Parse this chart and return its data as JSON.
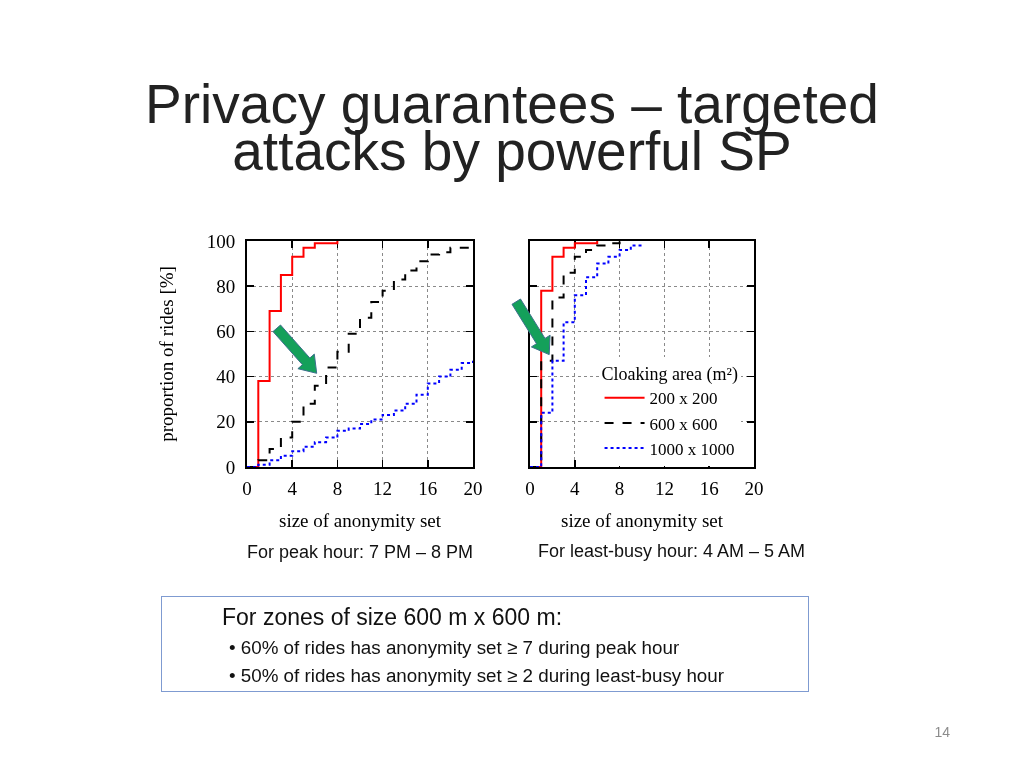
{
  "chart_data": [
    {
      "type": "step",
      "title": "Privacy guarantees – targeted attacks by powerful SP",
      "xlabel": "size of anonymity set",
      "ylabel": "proportion of rides [%]",
      "annotations": [
        "For peak hour: 7 PM – 8 PM"
      ],
      "series": [
        {
          "color": "#ff0000",
          "line_style": "solid",
          "x": [
            0,
            1,
            2,
            3,
            4,
            5,
            6,
            7,
            8
          ],
          "values": [
            0,
            38,
            69,
            85,
            93,
            97,
            99,
            99,
            100
          ]
        },
        {
          "color": "#000000",
          "line_style": "dashed",
          "x": [
            0,
            1,
            2,
            3,
            4,
            5,
            6,
            7,
            8,
            9,
            10,
            11,
            12,
            13,
            14,
            15,
            16,
            17,
            18,
            19,
            20
          ],
          "values": [
            0,
            3,
            8,
            13,
            20,
            28,
            36,
            44,
            51,
            59,
            66,
            73,
            78,
            83,
            87,
            91,
            94,
            95,
            97,
            97,
            97
          ]
        },
        {
          "color": "#0000ff",
          "line_style": "dotted",
          "x": [
            0,
            1,
            2,
            3,
            4,
            5,
            6,
            7,
            8,
            9,
            10,
            11,
            12,
            13,
            14,
            15,
            16,
            17,
            18,
            19,
            20
          ],
          "values": [
            0,
            1,
            3,
            5,
            7,
            9,
            11,
            13,
            16,
            17,
            19,
            21,
            23,
            25,
            28,
            32,
            37,
            40,
            43,
            46,
            47
          ]
        }
      ],
      "xlim": [
        0,
        20
      ],
      "xticks": [
        0,
        4,
        8,
        12,
        16,
        20
      ],
      "ylim": [
        0,
        100
      ],
      "yticks": [
        0,
        20,
        40,
        60,
        80,
        100
      ],
      "grid": true
    },
    {
      "type": "step",
      "xlabel": "size of anonymity set",
      "annotations": [
        "For least-busy hour: 4 AM – 5 AM"
      ],
      "legend_title": "Cloaking area (m²)",
      "series": [
        {
          "name": "200 x 200",
          "color": "#ff0000",
          "line_style": "solid",
          "x": [
            0,
            1,
            2,
            3,
            4,
            5,
            6
          ],
          "values": [
            0,
            78,
            93,
            97,
            99,
            99,
            100
          ]
        },
        {
          "name": "600 x 600",
          "color": "#000000",
          "line_style": "dashed",
          "x": [
            0,
            1,
            2,
            3,
            4,
            5,
            6,
            7,
            8
          ],
          "values": [
            0,
            47,
            75,
            86,
            93,
            96,
            98,
            99,
            100
          ]
        },
        {
          "name": "1000 x 1000",
          "color": "#0000ff",
          "line_style": "dotted",
          "x": [
            0,
            1,
            2,
            3,
            4,
            5,
            6,
            7,
            8,
            9,
            10
          ],
          "values": [
            0,
            24,
            47,
            64,
            76,
            84,
            90,
            93,
            96,
            98,
            99
          ]
        }
      ],
      "xlim": [
        0,
        20
      ],
      "xticks": [
        0,
        4,
        8,
        12,
        16,
        20
      ],
      "ylim": [
        0,
        100
      ],
      "yticks": [
        0,
        20,
        40,
        60,
        80,
        100
      ],
      "tick_labels": "x",
      "grid": true,
      "legend": "bottom right"
    },
    {
      "type": "other",
      "title": "For zones of size 600 m x 600 m:",
      "annotations": [
        "• 60% of rides has anonymity set ≥ 7 during peak hour",
        "• 50% of rides has anonymity set ≥ 2 during least-busy hour"
      ]
    },
    {
      "type": "other",
      "annotations": [
        "14"
      ]
    }
  ]
}
